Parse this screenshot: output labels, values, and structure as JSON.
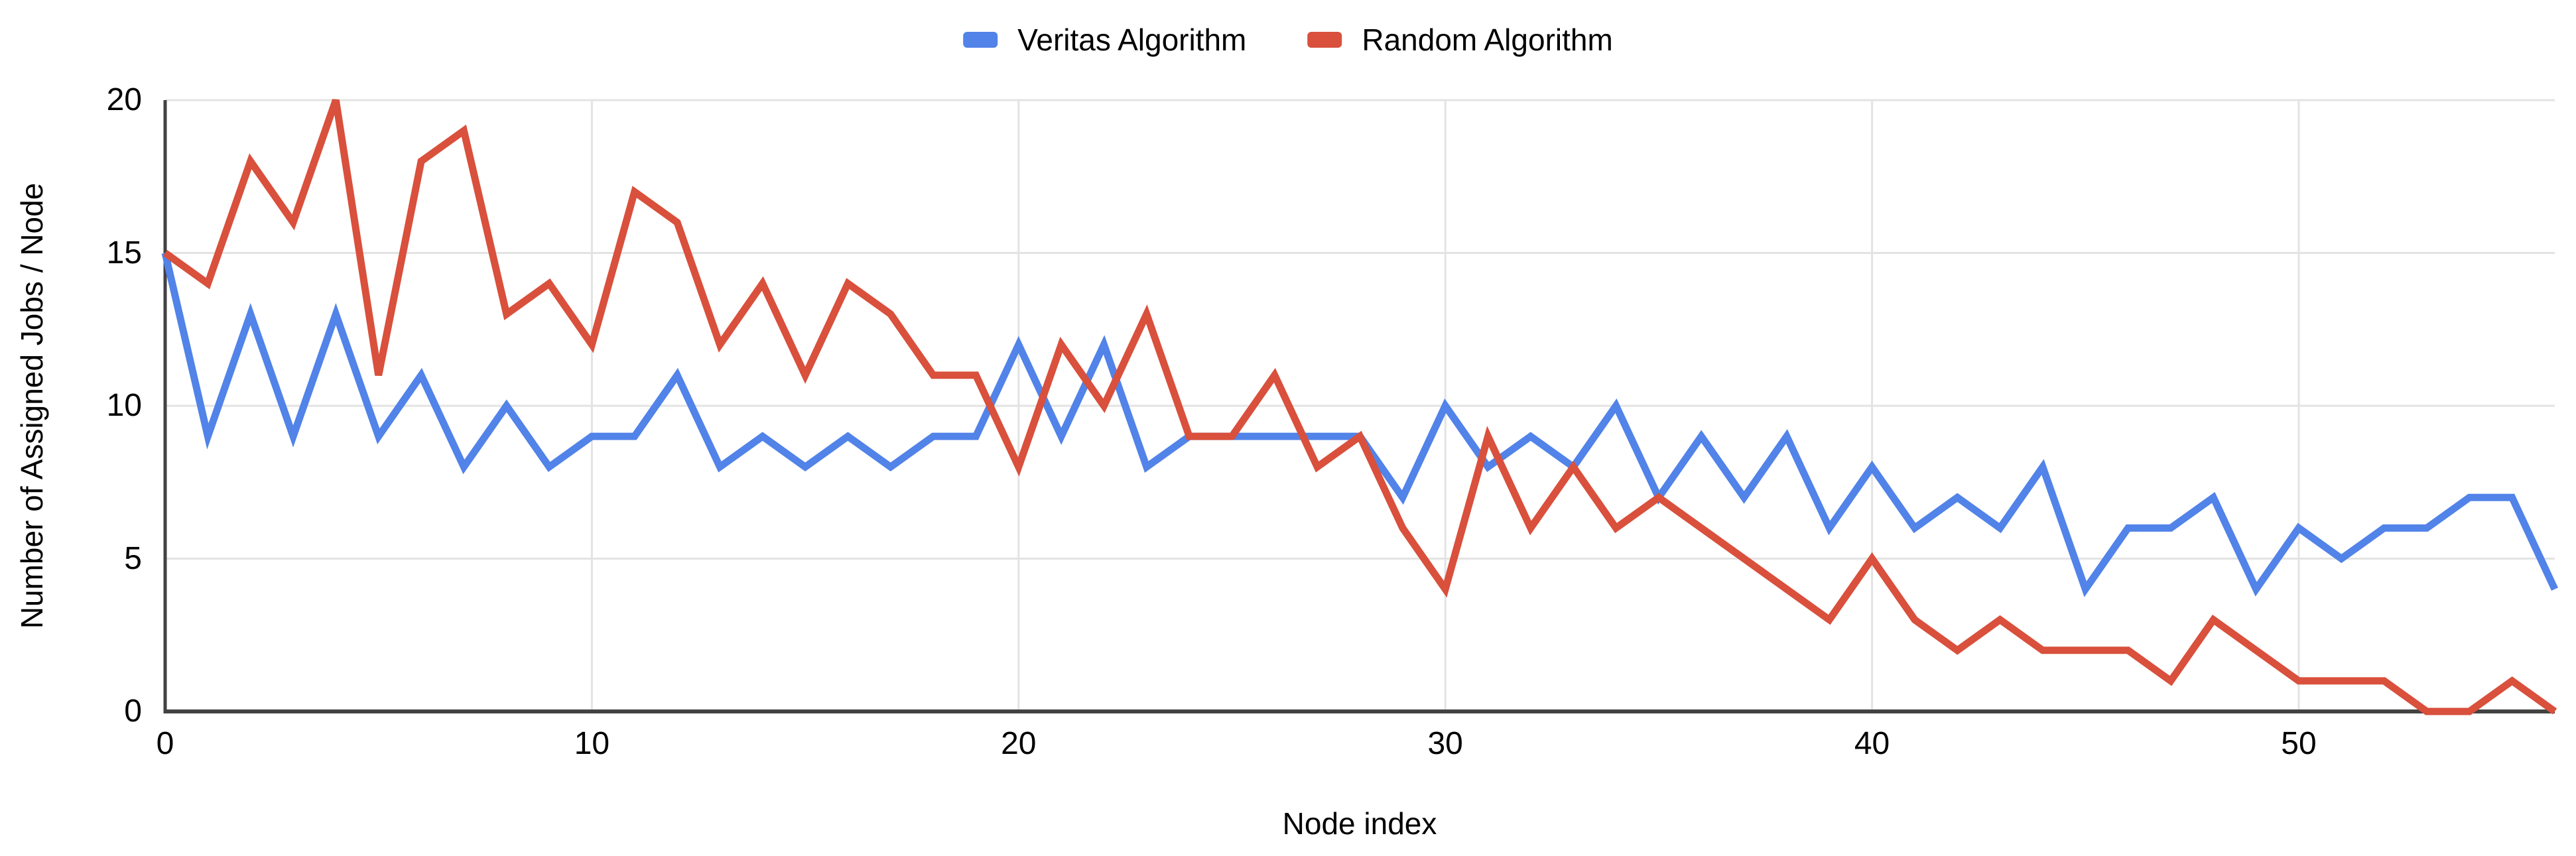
{
  "chart_data": {
    "type": "line",
    "title": "",
    "xlabel": "Node index",
    "ylabel": "Number of Assigned Jobs / Node",
    "x": [
      0,
      1,
      2,
      3,
      4,
      5,
      6,
      7,
      8,
      9,
      10,
      11,
      12,
      13,
      14,
      15,
      16,
      17,
      18,
      19,
      20,
      21,
      22,
      23,
      24,
      25,
      26,
      27,
      28,
      29,
      30,
      31,
      32,
      33,
      34,
      35,
      36,
      37,
      38,
      39,
      40,
      41,
      42,
      43,
      44,
      45,
      46,
      47,
      48,
      49,
      50,
      51,
      52,
      53,
      54,
      55,
      56
    ],
    "series": [
      {
        "name": "Veritas Algorithm",
        "color": "#5183E8",
        "values": [
          15,
          9,
          13,
          9,
          13,
          9,
          11,
          8,
          10,
          8,
          9,
          9,
          11,
          8,
          9,
          8,
          9,
          8,
          9,
          9,
          12,
          9,
          12,
          8,
          9,
          9,
          9,
          9,
          9,
          7,
          10,
          8,
          9,
          8,
          10,
          7,
          9,
          7,
          9,
          6,
          8,
          6,
          7,
          6,
          8,
          4,
          6,
          6,
          7,
          4,
          6,
          5,
          6,
          6,
          7,
          7,
          4
        ]
      },
      {
        "name": "Random Algorithm",
        "color": "#D9503C",
        "values": [
          15,
          14,
          18,
          16,
          20,
          11,
          18,
          19,
          13,
          14,
          12,
          17,
          16,
          12,
          14,
          11,
          14,
          13,
          11,
          11,
          8,
          12,
          10,
          13,
          9,
          9,
          11,
          8,
          9,
          6,
          4,
          9,
          6,
          8,
          6,
          7,
          6,
          5,
          4,
          3,
          5,
          3,
          2,
          3,
          2,
          2,
          2,
          1,
          3,
          2,
          1,
          1,
          1,
          0,
          0,
          1,
          0
        ]
      }
    ],
    "xlim": [
      0,
      56
    ],
    "ylim": [
      0,
      20
    ],
    "x_ticks": [
      0,
      10,
      20,
      30,
      40,
      50
    ],
    "y_ticks": [
      0,
      5,
      10,
      15,
      20
    ],
    "grid": true,
    "legend_position": "top-center",
    "background_color": "#FFFFFF",
    "gridline_color": "#E3E3E3",
    "axis_line_color": "#424242"
  }
}
